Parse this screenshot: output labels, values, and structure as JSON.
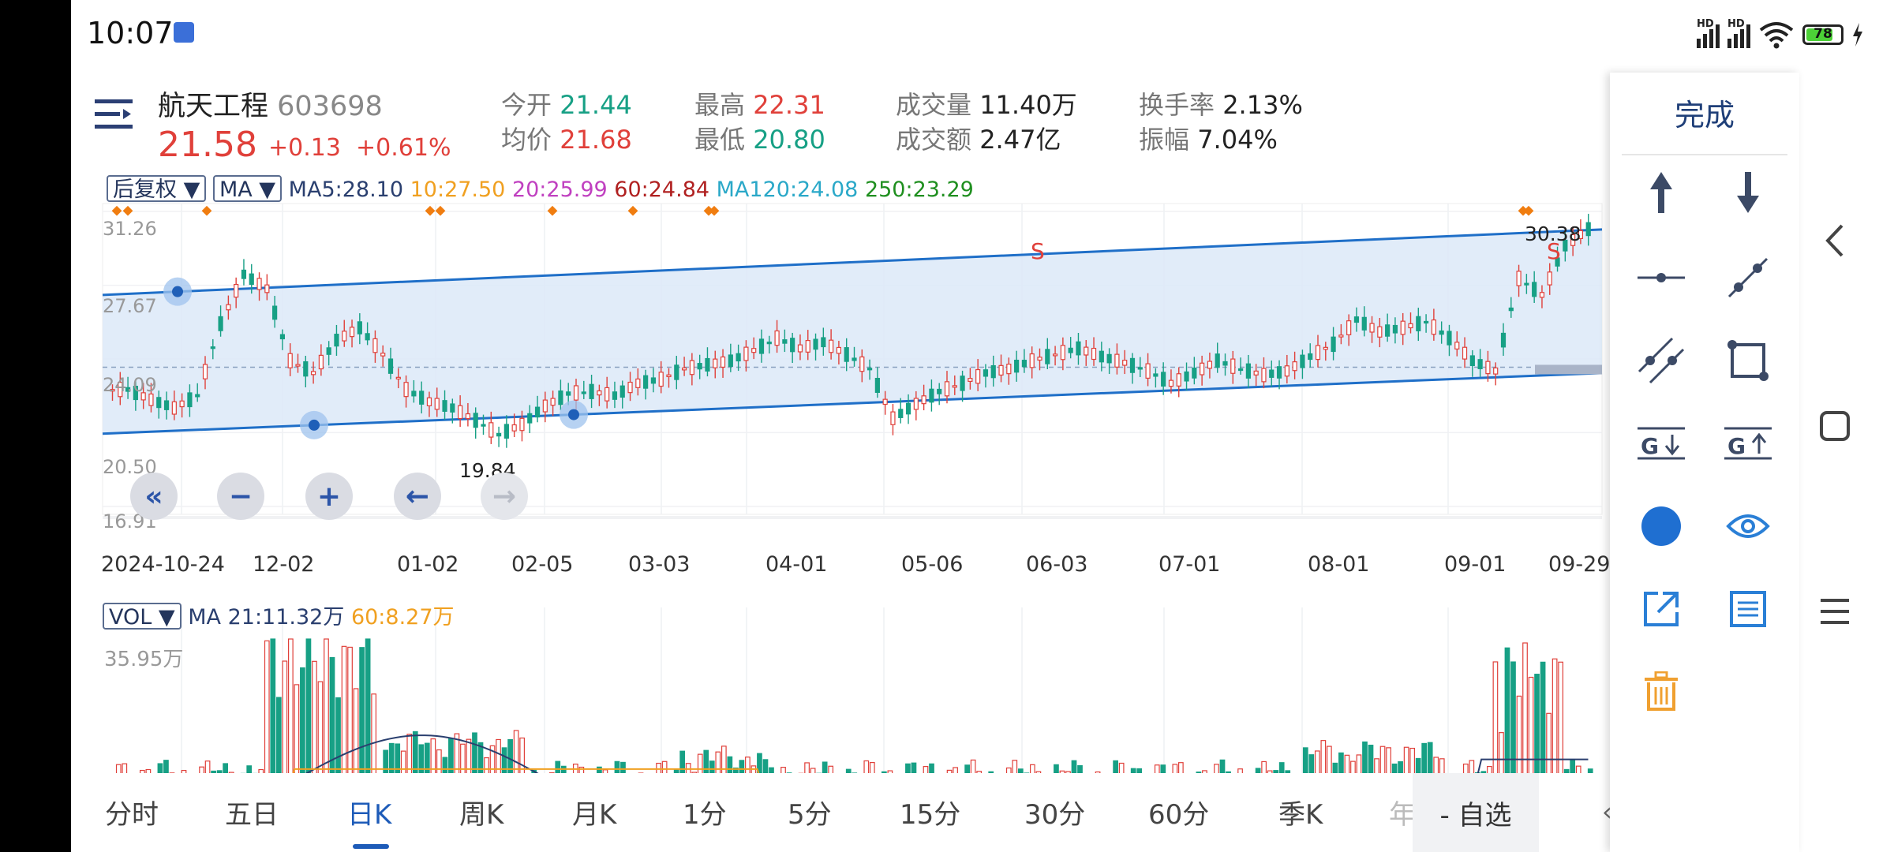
{
  "status": {
    "time": "10:07",
    "battery": "78",
    "battery_fraction": 0.78,
    "hd1": "HD",
    "hd2": "HD"
  },
  "stock": {
    "name": "航天工程",
    "code": "603698",
    "price": "21.58",
    "change": "+0.13",
    "change_pct": "+0.61%",
    "quotes": [
      {
        "label": "今开",
        "value": "21.44",
        "color": "green"
      },
      {
        "label": "均价",
        "value": "21.68",
        "color": "red"
      },
      {
        "label": "最高",
        "value": "22.31",
        "color": "red"
      },
      {
        "label": "最低",
        "value": "20.80",
        "color": "green"
      },
      {
        "label": "成交量",
        "value": "11.40万",
        "color": "dark"
      },
      {
        "label": "成交额",
        "value": "2.47亿",
        "color": "dark"
      },
      {
        "label": "换手率",
        "value": "2.13%",
        "color": "dark"
      },
      {
        "label": "振幅",
        "value": "7.04%",
        "color": "dark"
      }
    ]
  },
  "indicators": {
    "adjust_dropdown": "后复权 ▼",
    "ma_dropdown": "MA ▼",
    "ma5": "MA5:28.10",
    "ma10": "10:27.50",
    "ma20": "20:25.99",
    "ma60": "60:24.84",
    "ma120": "MA120:24.08",
    "ma250": "250:23.29"
  },
  "chart_data": {
    "type": "candlestick",
    "y_axis_labels": [
      "31.26",
      "27.67",
      "24.09",
      "20.50",
      "16.91"
    ],
    "ylim": [
      16.91,
      31.26
    ],
    "x_axis_labels": [
      "2024-10-24",
      "12-02",
      "01-02",
      "02-05",
      "03-03",
      "04-01",
      "05-06",
      "06-03",
      "07-01",
      "08-01",
      "09-01",
      "09-29"
    ],
    "annotations": {
      "high_label": "30.38",
      "low_label": "19.84",
      "sell_marker": "S",
      "sell_marker_2": "S"
    },
    "close_series_approx": [
      22.6,
      22.1,
      21.7,
      22.3,
      25.8,
      28.2,
      27.5,
      24.0,
      23.4,
      25.0,
      25.6,
      24.3,
      22.6,
      22.0,
      21.7,
      21.1,
      20.4,
      20.9,
      21.8,
      22.4,
      22.5,
      22.3,
      22.9,
      23.1,
      23.6,
      23.8,
      24.0,
      24.5,
      25.1,
      24.6,
      24.9,
      24.3,
      23.6,
      21.2,
      21.9,
      22.5,
      22.9,
      23.4,
      23.6,
      24.0,
      24.3,
      24.6,
      24.2,
      23.9,
      23.5,
      22.9,
      23.4,
      24.0,
      23.6,
      23.3,
      23.5,
      24.2,
      24.8,
      26.0,
      25.4,
      25.6,
      25.9,
      25.1,
      24.0,
      23.5,
      28.0,
      27.2,
      29.6,
      30.4
    ],
    "volume": {
      "label": "VOL ▼",
      "ma21": "MA 21:11.32万",
      "ma60": "60:8.27万",
      "max_label": "35.95万",
      "ylim": [
        0,
        35.95
      ]
    }
  },
  "controls": {
    "fast_back": "«",
    "zoom_out": "−",
    "zoom_in": "+",
    "back": "←",
    "forward": "→"
  },
  "tabs": [
    "分时",
    "五日",
    "日K",
    "周K",
    "月K",
    "1分",
    "5分",
    "15分",
    "30分",
    "60分",
    "季K",
    "年"
  ],
  "active_tab": "日K",
  "watchlist_button": "- 自选",
  "panel": {
    "done": "完成",
    "tools": [
      "arrow-up-icon",
      "arrow-down-icon",
      "horizontal-line-icon",
      "trend-line-icon",
      "parallel-channel-icon",
      "rectangle-icon",
      "gann-down-icon",
      "gann-up-icon",
      "color-dot-icon",
      "visibility-icon",
      "share-icon",
      "list-icon",
      "trash-icon"
    ],
    "accent_color": "#1f6fd1",
    "trash_color": "#f0a030"
  },
  "colors": {
    "up": "#e0403a",
    "down": "#17a085",
    "channel": "#1f6fc8",
    "ma10": "#f0a020",
    "ma20": "#c040c0",
    "ma60": "#b02020",
    "ma120": "#2aa8c8",
    "ma250": "#1f8f1f"
  }
}
